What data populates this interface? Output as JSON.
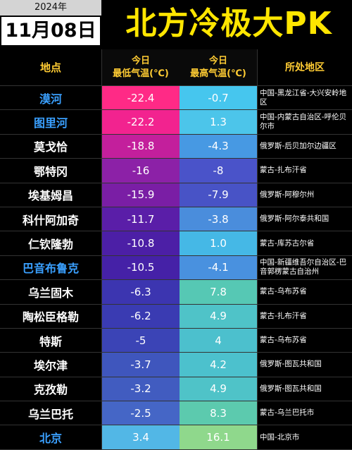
{
  "header": {
    "year": "2024年",
    "date": "11月08日",
    "title": "北方冷极大PK"
  },
  "columns": {
    "location": "地点",
    "low_line1": "今日",
    "low_line2": "最低气温(℃)",
    "high_line1": "今日",
    "high_line2": "最高气温(℃)",
    "region": "所处地区"
  },
  "rows": [
    {
      "name": "漠河",
      "low": "-22.4",
      "high": "-0.7",
      "region": "中国-黑龙江省-大兴安岭地区",
      "low_color": "#ff2a86",
      "high_color": "#46c6ee",
      "highlight": true
    },
    {
      "name": "图里河",
      "low": "-22.2",
      "high": "1.3",
      "region": "中国-内蒙古自治区-呼伦贝尔市",
      "low_color": "#f2238f",
      "high_color": "#4cc5ea",
      "highlight": true
    },
    {
      "name": "莫戈恰",
      "low": "-18.8",
      "high": "-4.3",
      "region": "俄罗斯-后贝加尔边疆区",
      "low_color": "#c31f9c",
      "high_color": "#4799e3",
      "highlight": false
    },
    {
      "name": "鄂特冈",
      "low": "-16",
      "high": "-8",
      "region": "蒙古-扎布汗省",
      "low_color": "#8c21a7",
      "high_color": "#4a53c9",
      "highlight": false
    },
    {
      "name": "埃基姆昌",
      "low": "-15.9",
      "high": "-7.9",
      "region": "俄罗斯-阿穆尔州",
      "low_color": "#7a1ea5",
      "high_color": "#4853c6",
      "highlight": false
    },
    {
      "name": "科什阿加奇",
      "low": "-11.7",
      "high": "-3.8",
      "region": "俄罗斯-阿尔泰共和国",
      "low_color": "#5a1ea8",
      "high_color": "#4a8ddc",
      "highlight": false
    },
    {
      "name": "仁钦隆勃",
      "low": "-10.8",
      "high": "1.0",
      "region": "蒙古-库苏古尔省",
      "low_color": "#4c1fa6",
      "high_color": "#45b8e6",
      "highlight": false
    },
    {
      "name": "巴音布鲁克",
      "low": "-10.5",
      "high": "-4.1",
      "region": "中国-新疆维吾尔自治区-巴音郭楞蒙古自治州",
      "low_color": "#4521a7",
      "high_color": "#4991df",
      "highlight": true
    },
    {
      "name": "乌兰固木",
      "low": "-6.3",
      "high": "7.8",
      "region": "蒙古-乌布苏省",
      "low_color": "#3c35b0",
      "high_color": "#56c8b4",
      "highlight": false
    },
    {
      "name": "陶松臣格勒",
      "low": "-6.2",
      "high": "4.9",
      "region": "蒙古-扎布汗省",
      "low_color": "#3a3bb2",
      "high_color": "#4fc3c8",
      "highlight": false
    },
    {
      "name": "特斯",
      "low": "-5",
      "high": "4",
      "region": "蒙古-乌布苏省",
      "low_color": "#3b44b6",
      "high_color": "#4cc0cd",
      "highlight": false
    },
    {
      "name": "埃尔津",
      "low": "-3.7",
      "high": "4.2",
      "region": "俄罗斯-图瓦共和国",
      "low_color": "#3f56bd",
      "high_color": "#4cc1cd",
      "highlight": false
    },
    {
      "name": "克孜勒",
      "low": "-3.2",
      "high": "4.9",
      "region": "俄罗斯-图瓦共和国",
      "low_color": "#415cc0",
      "high_color": "#4fc3c8",
      "highlight": false
    },
    {
      "name": "乌兰巴托",
      "low": "-2.5",
      "high": "8.3",
      "region": "蒙古-乌兰巴托市",
      "low_color": "#4566c6",
      "high_color": "#5ccaae",
      "highlight": false
    },
    {
      "name": "北京",
      "low": "3.4",
      "high": "16.1",
      "region": "中国-北京市",
      "low_color": "#52b7e6",
      "high_color": "#8fd88c",
      "highlight": true
    }
  ]
}
